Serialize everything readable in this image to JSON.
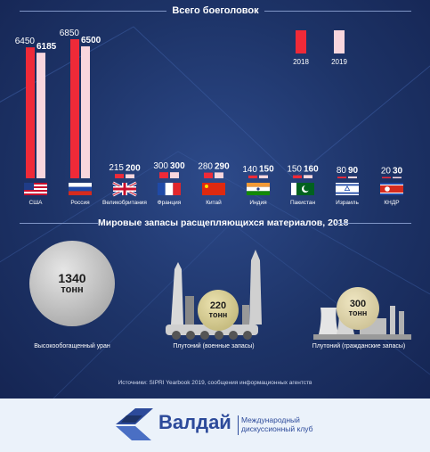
{
  "title": "Всего боеголовок",
  "legend": [
    {
      "label": "2018",
      "color": "#ef2a38"
    },
    {
      "label": "2019",
      "color": "#f9d6dd"
    }
  ],
  "chart_data": {
    "type": "bar",
    "categories": [
      "США",
      "Россия",
      "Великобритания",
      "Франция",
      "Китай",
      "Индия",
      "Пакистан",
      "Израиль",
      "КНДР"
    ],
    "series": [
      {
        "name": "2018",
        "values": [
          6450,
          6850,
          215,
          300,
          280,
          140,
          150,
          80,
          20
        ]
      },
      {
        "name": "2019",
        "values": [
          6185,
          6500,
          200,
          300,
          290,
          150,
          160,
          90,
          30
        ]
      }
    ],
    "title": "Всего боеголовок",
    "legend_position": "top-right"
  },
  "flags": [
    "flag-usa-icon",
    "flag-russia-icon",
    "flag-uk-icon",
    "flag-france-icon",
    "flag-china-icon",
    "flag-india-icon",
    "flag-pakistan-icon",
    "flag-israel-icon",
    "flag-north-korea-icon"
  ],
  "materials": {
    "title": "Мировые запасы расщепляющихся материалов, 2018",
    "items": [
      {
        "value": "1340",
        "unit": "тонн",
        "label": "Высокообогащенный уран"
      },
      {
        "value": "220",
        "unit": "тонн",
        "label": "Плутоний (военные запасы)"
      },
      {
        "value": "300",
        "unit": "тонн",
        "label": "Плутоний (гражданские запасы)"
      }
    ]
  },
  "source": "Источники: SIPRI Yearbook 2019, сообщения информационных агентств",
  "footer": {
    "brand": "Валдай",
    "sub_line1": "Международный",
    "sub_line2": "дискуссионный клуб"
  }
}
